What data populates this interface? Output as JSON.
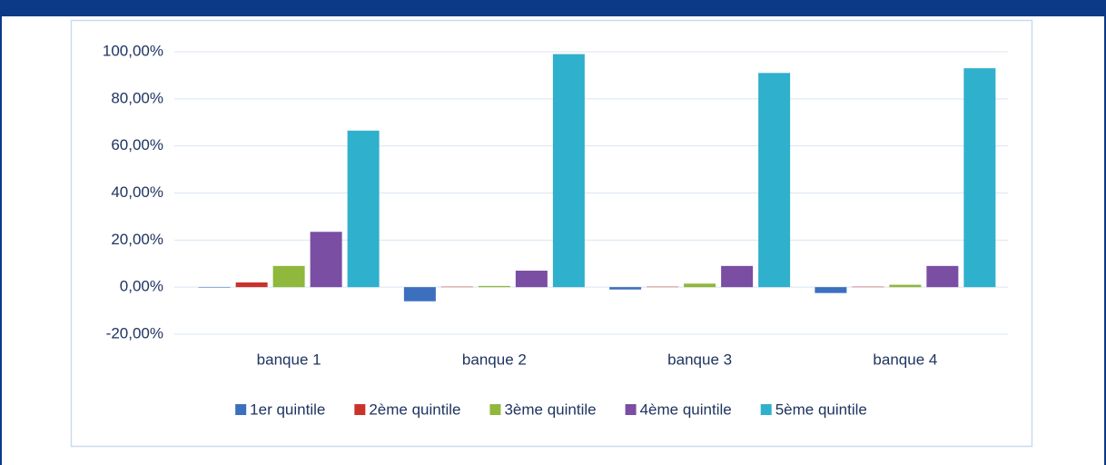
{
  "chart_data": {
    "type": "bar",
    "categories": [
      "banque 1",
      "banque 2",
      "banque 3",
      "banque 4"
    ],
    "series": [
      {
        "name": "1er quintile",
        "color": "#3d6fbf",
        "values": [
          -0.2,
          -6,
          -1,
          -2.5
        ]
      },
      {
        "name": "2ème quintile",
        "color": "#c9332c",
        "values": [
          2,
          0.2,
          0.2,
          0.2
        ]
      },
      {
        "name": "3ème quintile",
        "color": "#8fb83c",
        "values": [
          9,
          0.5,
          1.5,
          1
        ]
      },
      {
        "name": "4ème quintile",
        "color": "#7a4ea3",
        "values": [
          23.5,
          7,
          9,
          9
        ]
      },
      {
        "name": "5ème quintile",
        "color": "#2fb0cc",
        "values": [
          66.5,
          99,
          91,
          93
        ]
      }
    ],
    "ylim": [
      -20,
      100
    ],
    "yticks": [
      {
        "value": -20,
        "label": "-20,00%"
      },
      {
        "value": 0,
        "label": "0,00%"
      },
      {
        "value": 20,
        "label": "20,00%"
      },
      {
        "value": 40,
        "label": "40,00%"
      },
      {
        "value": 60,
        "label": "60,00%"
      },
      {
        "value": 80,
        "label": "80,00%"
      },
      {
        "value": 100,
        "label": "100,00%"
      }
    ],
    "grid": true
  }
}
